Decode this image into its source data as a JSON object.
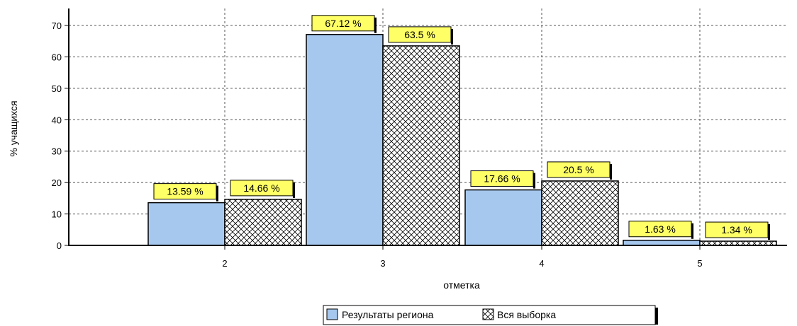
{
  "chart_data": {
    "type": "bar",
    "categories": [
      "2",
      "3",
      "4",
      "5"
    ],
    "series": [
      {
        "name": "Результаты региона",
        "values": [
          13.59,
          67.12,
          17.66,
          1.63
        ],
        "color": "#a6c8ee",
        "pattern": "solid"
      },
      {
        "name": "Вся выборка",
        "values": [
          14.66,
          63.5,
          20.5,
          1.34
        ],
        "color": "#ffffff",
        "pattern": "crosshatch"
      }
    ],
    "data_labels": [
      [
        "13.59 %",
        "67.12 %",
        "17.66 %",
        "1.63 %"
      ],
      [
        "14.66 %",
        "63.5 %",
        "20.5 %",
        "1.34 %"
      ]
    ],
    "label_background": "#ffff66",
    "xlabel": "отметка",
    "ylabel": "% учащихся",
    "ylim": [
      0,
      70
    ],
    "yticks": [
      0,
      10,
      20,
      30,
      40,
      50,
      60,
      70
    ],
    "grid": true,
    "legend_position": "bottom-center"
  }
}
